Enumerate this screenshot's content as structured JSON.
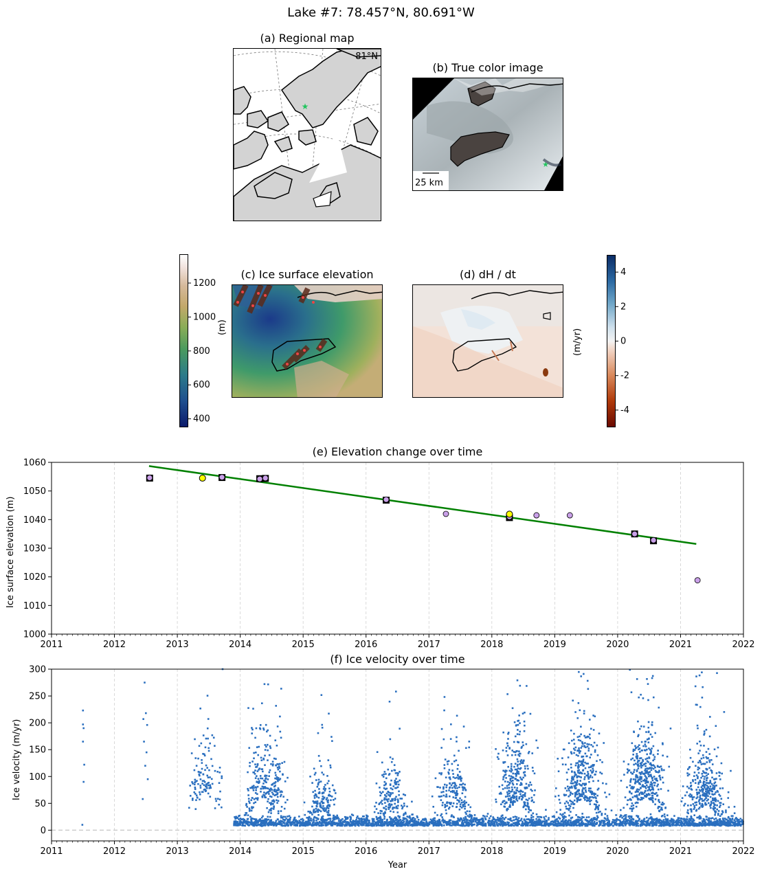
{
  "figure": {
    "suptitle": "Lake #7: 78.457°N, 80.691°W"
  },
  "map_panels": {
    "a": {
      "title": "(a) Regional map",
      "lat_label": "81°N"
    },
    "b": {
      "title": "(b) True color image",
      "scale_label": "25 km"
    },
    "c": {
      "title": "(c) Ice surface elevation",
      "cbar_label": "(m)",
      "cbar_ticks": [
        400,
        600,
        800,
        1000,
        1200
      ],
      "cbar_range": [
        350,
        1370
      ]
    },
    "d": {
      "title": "(d) dH / dt",
      "cbar_label": "(m/yr)",
      "cbar_ticks": [
        -4,
        -2,
        0,
        2,
        4
      ],
      "cbar_range": [
        -5,
        5
      ]
    }
  },
  "chart_data": [
    {
      "type": "scatter",
      "title": "(e) Elevation change over time",
      "xlabel": "",
      "ylabel": "Ice surface elevation (m)",
      "xlim": [
        2011,
        2022
      ],
      "ylim": [
        1000,
        1060
      ],
      "xticks": [
        2011,
        2012,
        2013,
        2014,
        2015,
        2016,
        2017,
        2018,
        2019,
        2020,
        2021,
        2022
      ],
      "yticks": [
        1000,
        1010,
        1020,
        1030,
        1040,
        1050,
        1060
      ],
      "grid": "x-dashed",
      "series": [
        {
          "name": "square measurements",
          "x": [
            2012.56,
            2013.71,
            2014.31,
            2014.4,
            2016.32,
            2018.28,
            2020.27,
            2020.57
          ],
          "y": [
            1054.5,
            1054.7,
            1054.3,
            1054.4,
            1046.8,
            1040.7,
            1035.0,
            1032.6
          ]
        },
        {
          "name": "purple points",
          "x": [
            2012.56,
            2013.71,
            2014.31,
            2014.4,
            2016.32,
            2017.27,
            2018.28,
            2018.71,
            2019.24,
            2020.27,
            2020.57,
            2021.27
          ],
          "y": [
            1054.6,
            1054.8,
            1054.2,
            1054.5,
            1047.0,
            1042.0,
            1041.0,
            1041.5,
            1041.5,
            1035.0,
            1032.8,
            1018.8
          ]
        },
        {
          "name": "yellow points",
          "x": [
            2013.4,
            2018.28
          ],
          "y": [
            1054.5,
            1041.9
          ]
        },
        {
          "name": "linear trend",
          "x": [
            2012.55,
            2021.25
          ],
          "y": [
            1058.7,
            1031.5
          ]
        }
      ]
    },
    {
      "type": "scatter",
      "title": "(f) Ice velocity over time",
      "xlabel": "Year",
      "ylabel": "Ice velocity (m/yr)",
      "xlim": [
        2011,
        2022
      ],
      "ylim": [
        -20,
        300
      ],
      "xticks": [
        2011,
        2012,
        2013,
        2014,
        2015,
        2016,
        2017,
        2018,
        2019,
        2020,
        2021,
        2022
      ],
      "yticks": [
        0,
        50,
        100,
        150,
        200,
        250,
        300
      ],
      "grid": "x-dashed",
      "zero_line": 0,
      "series": [
        {
          "name": "early sparse points",
          "x": [
            2011.5,
            2011.5,
            2011.51,
            2011.5,
            2011.52,
            2011.51,
            2011.49,
            2012.46,
            2012.48,
            2012.5,
            2012.52,
            2012.47,
            2012.51,
            2012.49,
            2012.53,
            2012.45,
            2013.72
          ],
          "y": [
            223,
            197,
            190,
            165,
            122,
            90,
            10,
            207,
            275,
            218,
            196,
            165,
            145,
            120,
            95,
            58,
            300
          ]
        },
        {
          "name": "velocity clusters (summer peak, peak spread, winter baseline, winter spread, n points)",
          "clusters": [
            [
              2013.45,
              0.12,
              70,
              55,
              120
            ],
            [
              2014.35,
              0.15,
              60,
              60,
              200
            ],
            [
              2014.6,
              0.1,
              50,
              55,
              80
            ],
            [
              2015.3,
              0.12,
              35,
              35,
              160
            ],
            [
              2016.4,
              0.13,
              35,
              45,
              160
            ],
            [
              2017.4,
              0.15,
              40,
              55,
              190
            ],
            [
              2018.4,
              0.16,
              50,
              65,
              320
            ],
            [
              2019.45,
              0.18,
              55,
              70,
              380
            ],
            [
              2020.45,
              0.16,
              60,
              70,
              420
            ],
            [
              2021.4,
              0.16,
              45,
              55,
              340
            ]
          ],
          "baseline": {
            "start": 2013.9,
            "end": 2022.0,
            "level": 8,
            "spread": 8,
            "n": 2600
          }
        }
      ]
    }
  ],
  "colors": {
    "trend_line": "#008000",
    "purple_point": "#c9a0e8",
    "yellow_point": "#ffff00",
    "velocity_point": "#2a6fbf",
    "map_land": "#d3d3d3",
    "grid": "#d0d0d0"
  }
}
